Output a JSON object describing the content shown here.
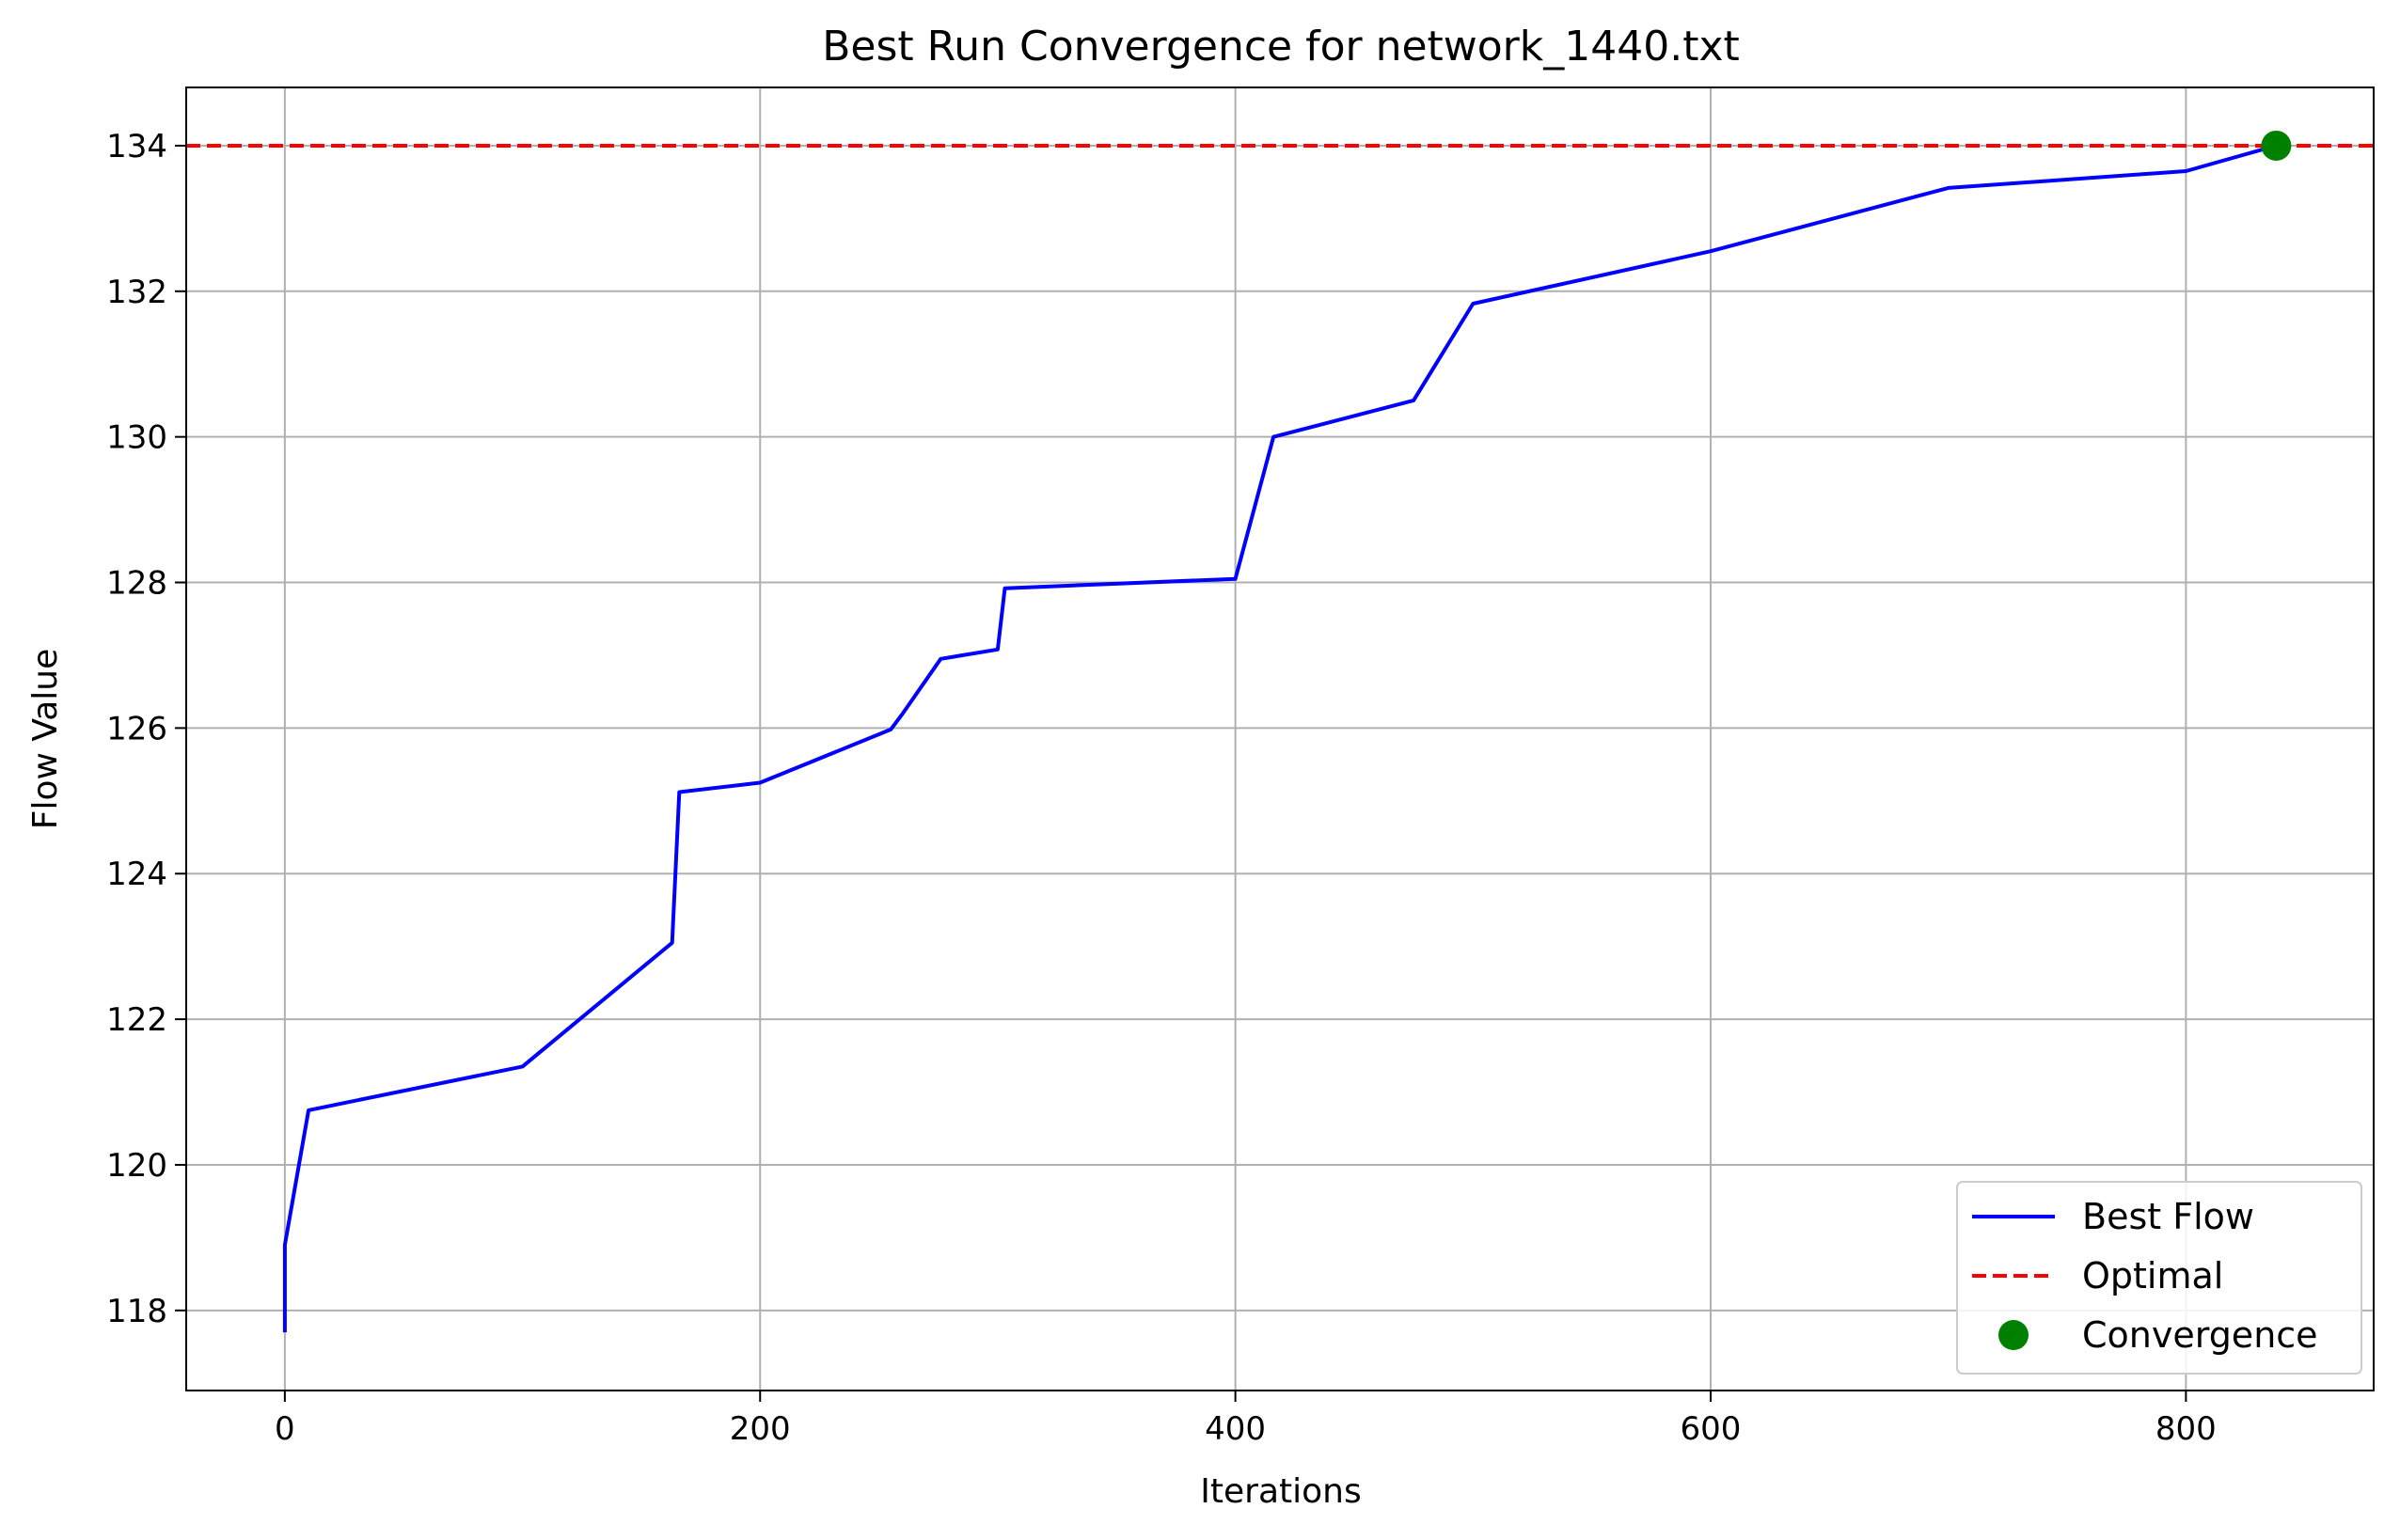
{
  "chart_data": {
    "type": "line",
    "title": "Best Run Convergence for network_1440.txt",
    "xlabel": "Iterations",
    "ylabel": "Flow Value",
    "xlim": [
      -41.5,
      879
    ],
    "ylim": [
      116.9,
      134.8
    ],
    "xticks": [
      0,
      200,
      400,
      600,
      800
    ],
    "yticks": [
      118,
      120,
      122,
      124,
      126,
      128,
      130,
      132,
      134
    ],
    "grid": true,
    "legend_position": "lower-right",
    "series": [
      {
        "name": "Best Flow",
        "kind": "line",
        "color": "#0000ff",
        "x": [
          0,
          0,
          10,
          100,
          163,
          166,
          200,
          255,
          260,
          276,
          300,
          303,
          400,
          416,
          475,
          500,
          600,
          700,
          800,
          838
        ],
        "y": [
          117.7,
          118.9,
          120.75,
          121.35,
          123.05,
          125.12,
          125.25,
          125.98,
          126.2,
          126.95,
          127.08,
          127.92,
          128.05,
          130.0,
          130.5,
          131.83,
          132.55,
          133.42,
          133.65,
          134.0
        ]
      },
      {
        "name": "Optimal",
        "kind": "hline",
        "color": "#ff0000",
        "y": 134
      },
      {
        "name": "Convergence",
        "kind": "marker",
        "color": "#008000",
        "x": [
          838
        ],
        "y": [
          134
        ]
      }
    ]
  }
}
